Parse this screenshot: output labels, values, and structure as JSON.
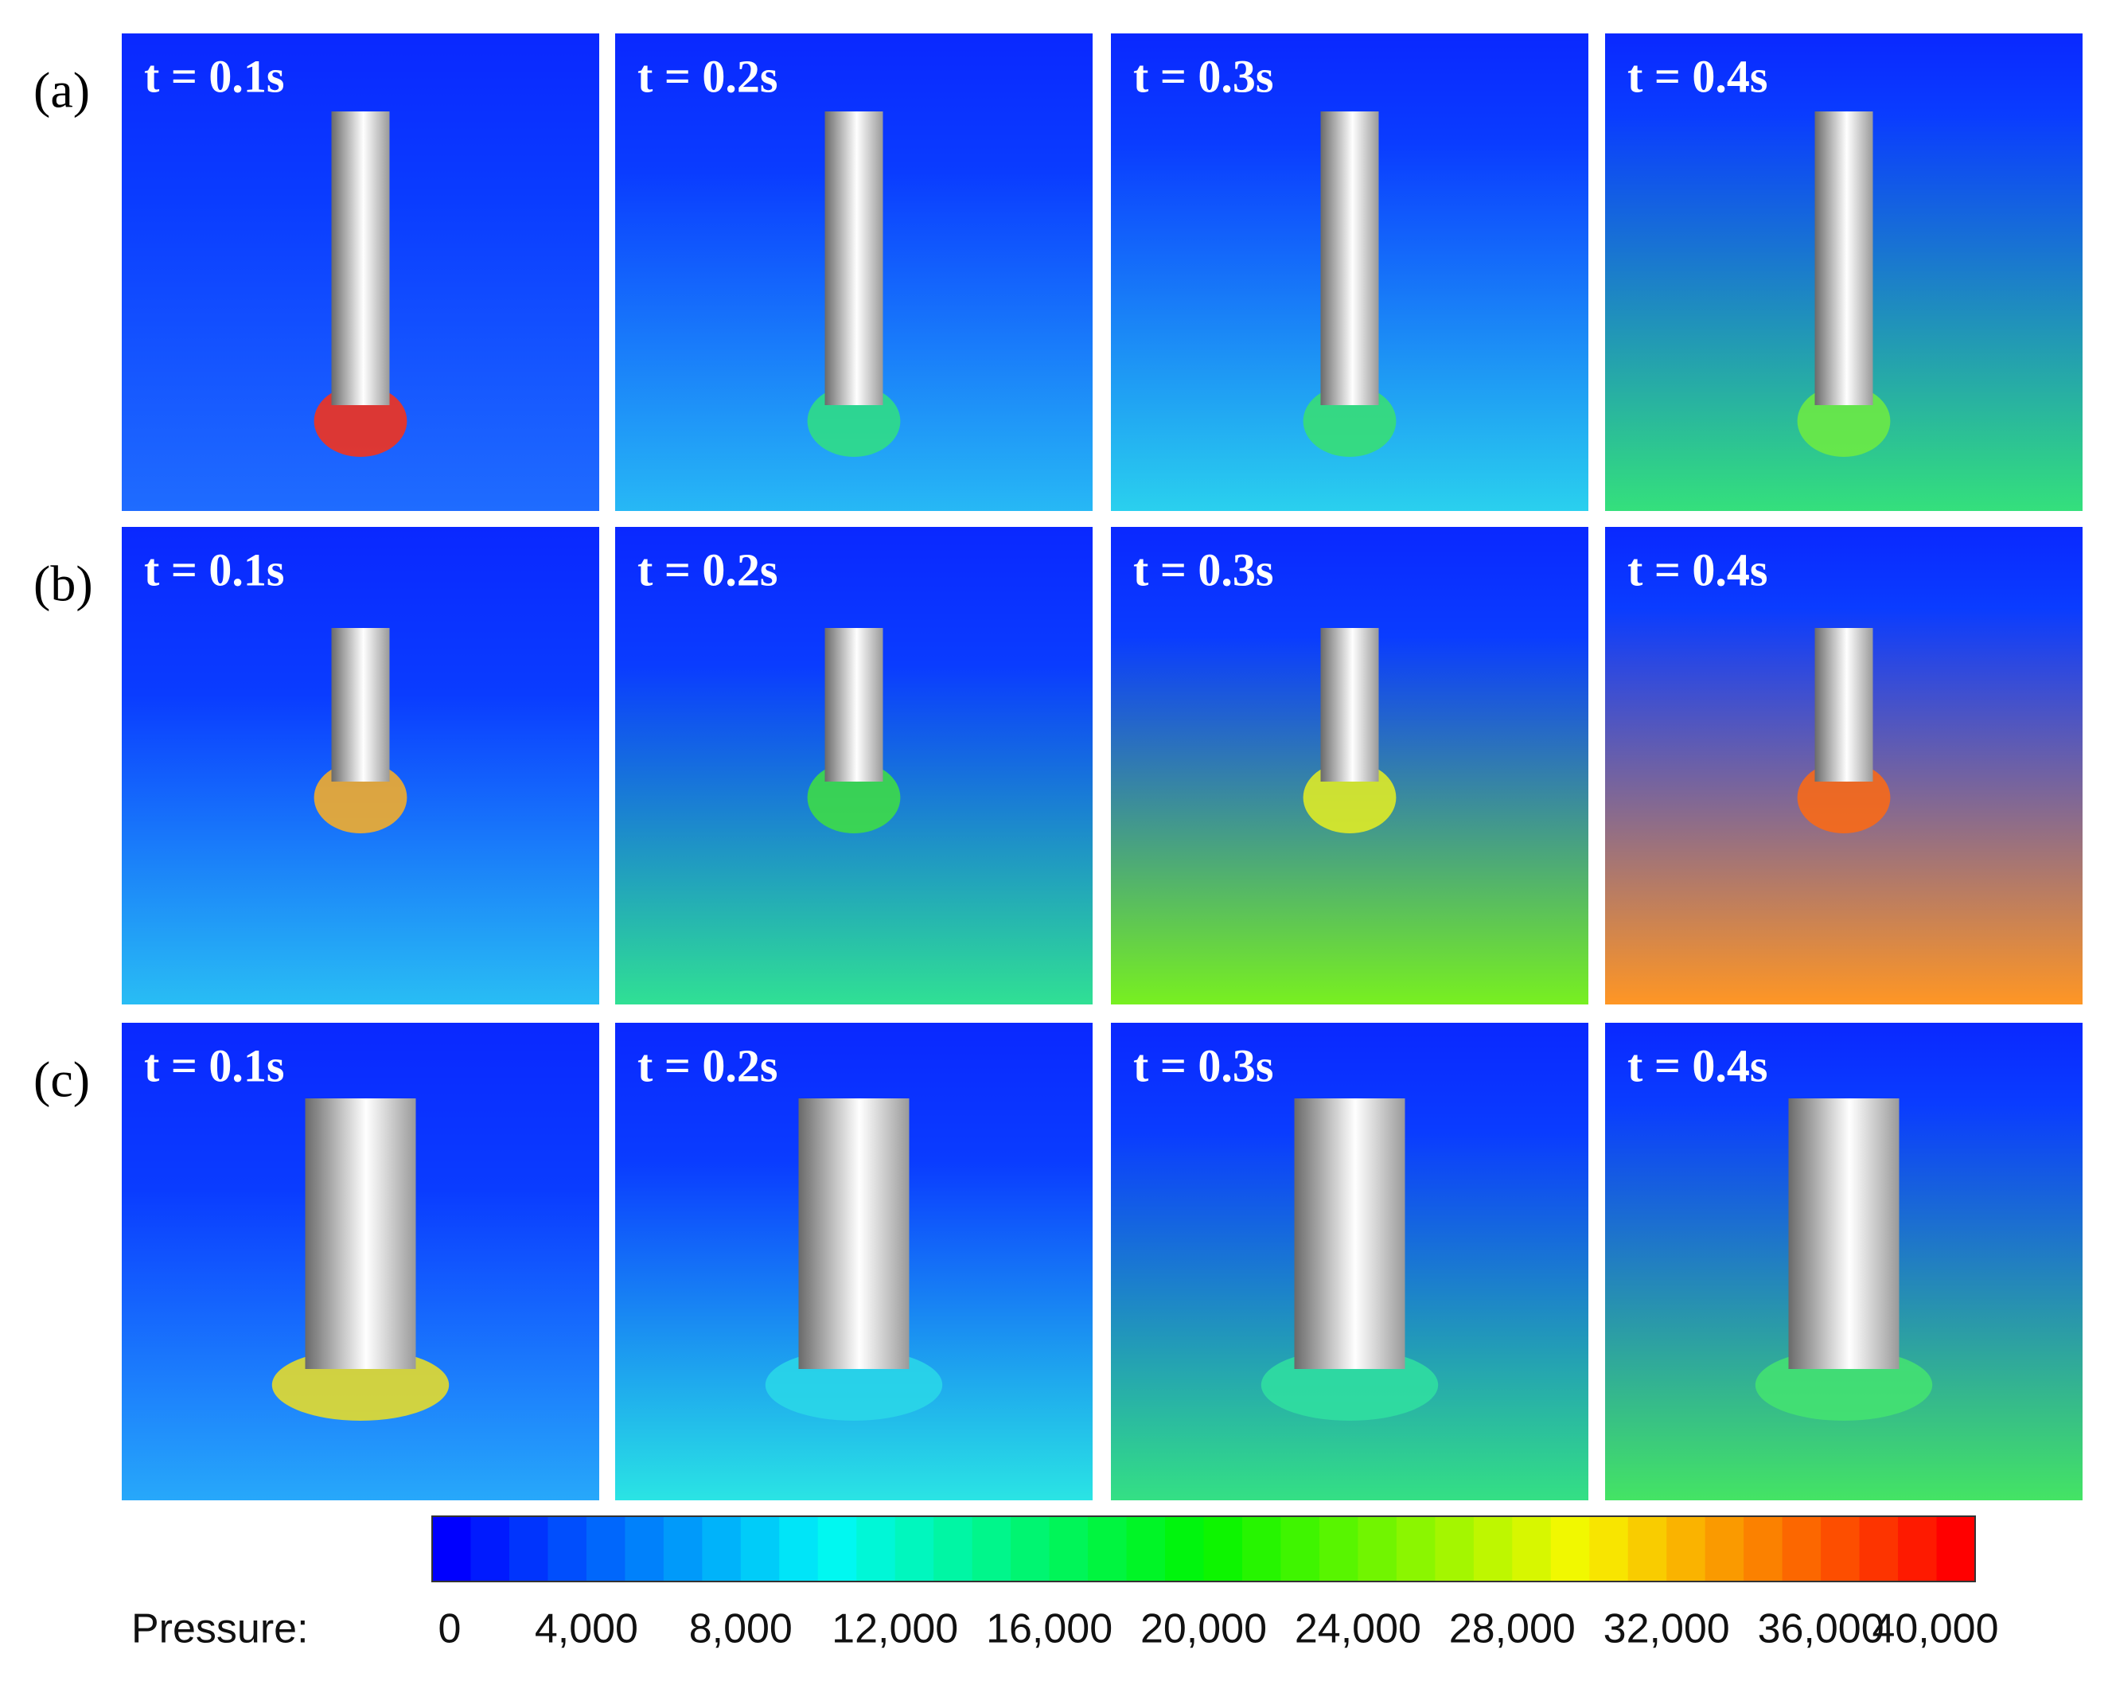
{
  "rows": [
    {
      "label": "(a)",
      "panels": [
        "t = 0.1s",
        "t = 0.2s",
        "t = 0.3s",
        "t = 0.4s"
      ]
    },
    {
      "label": "(b)",
      "panels": [
        "t = 0.1s",
        "t = 0.2s",
        "t = 0.3s",
        "t = 0.4s"
      ]
    },
    {
      "label": "(c)",
      "panels": [
        "t = 0.1s",
        "t = 0.2s",
        "t = 0.3s",
        "t = 0.4s"
      ]
    }
  ],
  "colorbar": {
    "label": "Pressure:",
    "ticks": [
      "0",
      "4,000",
      "8,000",
      "12,000",
      "16,000",
      "20,000",
      "24,000",
      "28,000",
      "32,000",
      "36,000",
      "40,000"
    ]
  }
}
